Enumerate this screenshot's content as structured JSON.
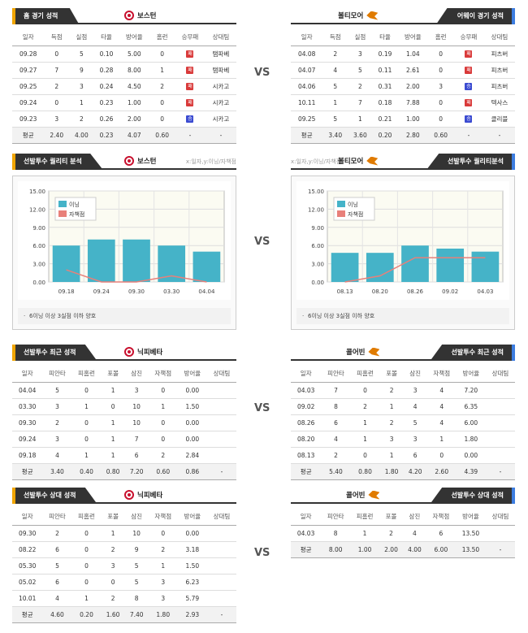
{
  "vs": "VS",
  "home_recent": {
    "title": "홈 경기 성적",
    "team": "보스턴",
    "headers": [
      "일자",
      "득점",
      "실점",
      "타율",
      "방어율",
      "홈런",
      "승무패",
      "상대팀"
    ],
    "rows": [
      [
        "09.28",
        "0",
        "5",
        "0.10",
        "5.00",
        "0",
        "패",
        "탬파베"
      ],
      [
        "09.27",
        "7",
        "9",
        "0.28",
        "8.00",
        "1",
        "패",
        "탬파베"
      ],
      [
        "09.25",
        "2",
        "3",
        "0.24",
        "4.50",
        "2",
        "패",
        "시카고"
      ],
      [
        "09.24",
        "0",
        "1",
        "0.23",
        "1.00",
        "0",
        "패",
        "시카고"
      ],
      [
        "09.23",
        "3",
        "2",
        "0.26",
        "2.00",
        "0",
        "승",
        "시카고"
      ]
    ],
    "avg": [
      "평균",
      "2.40",
      "4.00",
      "0.23",
      "4.07",
      "0.60",
      "-",
      "-"
    ]
  },
  "away_recent": {
    "title": "어웨이 경기 성적",
    "team": "볼티모어",
    "headers": [
      "일자",
      "득점",
      "실점",
      "타율",
      "방어율",
      "홈런",
      "승무패",
      "상대팀"
    ],
    "rows": [
      [
        "04.08",
        "2",
        "3",
        "0.19",
        "1.04",
        "0",
        "패",
        "피츠버"
      ],
      [
        "04.07",
        "4",
        "5",
        "0.11",
        "2.61",
        "0",
        "패",
        "피츠버"
      ],
      [
        "04.06",
        "5",
        "2",
        "0.31",
        "2.00",
        "3",
        "승",
        "피츠버"
      ],
      [
        "10.11",
        "1",
        "7",
        "0.18",
        "7.88",
        "0",
        "패",
        "텍사스"
      ],
      [
        "09.25",
        "5",
        "1",
        "0.21",
        "1.00",
        "0",
        "승",
        "클리블"
      ]
    ],
    "avg": [
      "평균",
      "3.40",
      "3.60",
      "0.20",
      "2.80",
      "0.60",
      "-",
      "-"
    ]
  },
  "chart_left": {
    "title": "선발투수 퀄리티 분석",
    "team": "보스턴",
    "hint": "x:일자,y:이닝/자책점",
    "note": "6이닝 이상 3실점 이하 양호",
    "chart_data": {
      "type": "bar",
      "categories": [
        "09.18",
        "09.24",
        "09.30",
        "03.30",
        "04.04"
      ],
      "series": [
        {
          "name": "이닝",
          "values": [
            6.0,
            7.0,
            7.0,
            6.0,
            5.0
          ]
        },
        {
          "name": "자책점",
          "values": [
            2,
            0,
            0,
            1,
            0
          ]
        }
      ],
      "yticks": [
        "15.00",
        "12.00",
        "9.00",
        "6.00",
        "3.00",
        "0.00"
      ],
      "ylim": [
        0,
        15
      ]
    }
  },
  "chart_right": {
    "title": "선발투수 퀄리티분석",
    "team": "볼티모어",
    "hint": "x:일자,y:이닝/자책점",
    "note": "6이닝 이상 3실점 이하 양호",
    "chart_data": {
      "type": "bar",
      "categories": [
        "08.13",
        "08.20",
        "08.26",
        "09.02",
        "04.03"
      ],
      "series": [
        {
          "name": "이닝",
          "values": [
            4.8,
            4.8,
            6.0,
            5.5,
            5.0
          ]
        },
        {
          "name": "자책점",
          "values": [
            0,
            1,
            4,
            4,
            4
          ]
        }
      ],
      "yticks": [
        "15.00",
        "12.00",
        "9.00",
        "6.00",
        "3.00",
        "0.00"
      ],
      "ylim": [
        0,
        15
      ]
    }
  },
  "pitcher_recent_left": {
    "title": "선발투수 최근 성적",
    "team": "닉피베타",
    "headers": [
      "일자",
      "피안타",
      "피홈런",
      "포볼",
      "삼진",
      "자책점",
      "방어율",
      "상대팀"
    ],
    "rows": [
      [
        "04.04",
        "5",
        "0",
        "1",
        "3",
        "0",
        "0.00",
        ""
      ],
      [
        "03.30",
        "3",
        "1",
        "0",
        "10",
        "1",
        "1.50",
        ""
      ],
      [
        "09.30",
        "2",
        "0",
        "1",
        "10",
        "0",
        "0.00",
        ""
      ],
      [
        "09.24",
        "3",
        "0",
        "1",
        "7",
        "0",
        "0.00",
        ""
      ],
      [
        "09.18",
        "4",
        "1",
        "1",
        "6",
        "2",
        "2.84",
        ""
      ]
    ],
    "avg": [
      "평균",
      "3.40",
      "0.40",
      "0.80",
      "7.20",
      "0.60",
      "0.86",
      "-"
    ]
  },
  "pitcher_recent_right": {
    "title": "선발투수 최근 성적",
    "team": "콜어빈",
    "headers": [
      "일자",
      "피안타",
      "피홈런",
      "포볼",
      "삼진",
      "자책점",
      "방어율",
      "상대팀"
    ],
    "rows": [
      [
        "04.03",
        "7",
        "0",
        "2",
        "3",
        "4",
        "7.20",
        ""
      ],
      [
        "09.02",
        "8",
        "2",
        "1",
        "4",
        "4",
        "6.35",
        ""
      ],
      [
        "08.26",
        "6",
        "1",
        "2",
        "5",
        "4",
        "6.00",
        ""
      ],
      [
        "08.20",
        "4",
        "1",
        "3",
        "3",
        "1",
        "1.80",
        ""
      ],
      [
        "08.13",
        "2",
        "0",
        "1",
        "6",
        "0",
        "0.00",
        ""
      ]
    ],
    "avg": [
      "평균",
      "5.40",
      "0.80",
      "1.80",
      "4.20",
      "2.60",
      "4.39",
      "-"
    ]
  },
  "pitcher_vs_left": {
    "title": "선발투수 상대 성적",
    "team": "닉피베타",
    "headers": [
      "일자",
      "피안타",
      "피홈런",
      "포볼",
      "삼진",
      "자책점",
      "방어율",
      "상대팀"
    ],
    "rows": [
      [
        "09.30",
        "2",
        "0",
        "1",
        "10",
        "0",
        "0.00",
        ""
      ],
      [
        "08.22",
        "6",
        "0",
        "2",
        "9",
        "2",
        "3.18",
        ""
      ],
      [
        "05.30",
        "5",
        "0",
        "3",
        "5",
        "1",
        "1.50",
        ""
      ],
      [
        "05.02",
        "6",
        "0",
        "0",
        "5",
        "3",
        "6.23",
        ""
      ],
      [
        "10.01",
        "4",
        "1",
        "2",
        "8",
        "3",
        "5.79",
        ""
      ]
    ],
    "avg": [
      "평균",
      "4.60",
      "0.20",
      "1.60",
      "7.40",
      "1.80",
      "2.93",
      "-"
    ]
  },
  "pitcher_vs_right": {
    "title": "선발투수 상대 성적",
    "team": "콜어빈",
    "headers": [
      "일자",
      "피안타",
      "피홈런",
      "포볼",
      "삼진",
      "자책점",
      "방어율",
      "상대팀"
    ],
    "rows": [
      [
        "04.03",
        "8",
        "1",
        "2",
        "4",
        "6",
        "13.50",
        ""
      ]
    ],
    "avg": [
      "평균",
      "8.00",
      "1.00",
      "2.00",
      "4.00",
      "6.00",
      "13.50",
      "-"
    ]
  }
}
